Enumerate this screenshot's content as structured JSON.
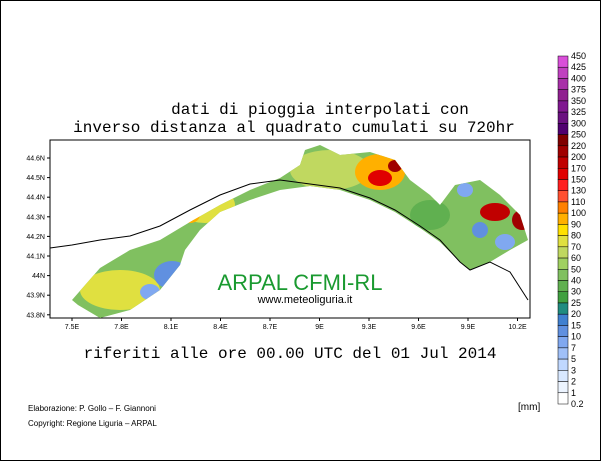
{
  "header": {
    "title_line1": "dati di pioggia interpolati con",
    "title_line2": "inverso distanza al quadrato cumulati su 720hr"
  },
  "map": {
    "lat_ticks": [
      "44.6N",
      "44.5N",
      "44.4N",
      "44.3N",
      "44.2N",
      "44.1N",
      "44N",
      "43.9N",
      "43.8N"
    ],
    "lon_ticks": [
      "7.5E",
      "7.8E",
      "8.1E",
      "8.4E",
      "8.7E",
      "9E",
      "9.3E",
      "9.6E",
      "9.9E",
      "10.2E"
    ],
    "watermark": "ARPAL CFMI-RL",
    "website": "www.meteoliguria.it"
  },
  "reference": "riferiti alle ore 00.00 UTC del 01 Jul 2014",
  "credits": {
    "elaboration": "Elaborazione: P. Gollo – F. Giannoni",
    "copyright": "Copyright: Regione Liguria – ARPAL"
  },
  "legend": {
    "unit": "[mm]",
    "levels": [
      "450",
      "425",
      "400",
      "375",
      "350",
      "325",
      "300",
      "250",
      "220",
      "200",
      "170",
      "150",
      "130",
      "110",
      "100",
      "90",
      "80",
      "70",
      "60",
      "50",
      "40",
      "30",
      "25",
      "20",
      "15",
      "10",
      "7",
      "5",
      "3",
      "2",
      "1",
      "0.2"
    ],
    "colors": [
      "#d94fd9",
      "#c040c0",
      "#a830a8",
      "#902090",
      "#801890",
      "#6a1080",
      "#500070",
      "#800000",
      "#a00000",
      "#c00000",
      "#e00000",
      "#ff2020",
      "#ff5030",
      "#ff8000",
      "#ffb000",
      "#ffe000",
      "#e0e040",
      "#c0d860",
      "#a0d060",
      "#80c060",
      "#60b050",
      "#40a040",
      "#208c80",
      "#4080d0",
      "#6090e0",
      "#80a8f0",
      "#a0c0f8",
      "#c0d8ff",
      "#d8e8ff",
      "#ecf4ff",
      "#ffffff"
    ]
  }
}
